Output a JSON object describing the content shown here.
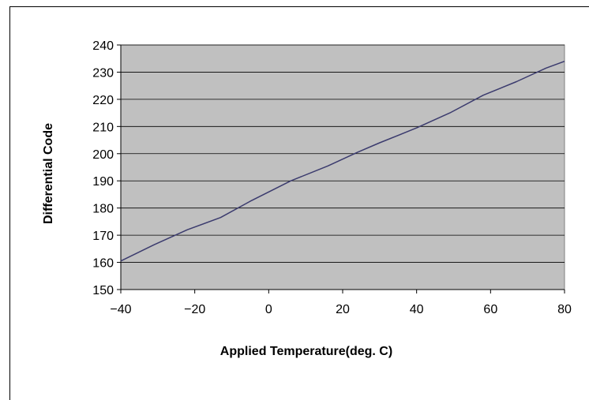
{
  "chart_data": {
    "type": "line",
    "title": "",
    "xlabel": "Applied Temperature(deg. C)",
    "ylabel": "Differential Code",
    "xlim": [
      -40,
      80
    ],
    "ylim": [
      150,
      240
    ],
    "xticks": [
      -40,
      -20,
      0,
      20,
      40,
      60,
      80
    ],
    "yticks": [
      150,
      160,
      170,
      180,
      190,
      200,
      210,
      220,
      230,
      240
    ],
    "xtick_labels": [
      "−40",
      "−20",
      "0",
      "20",
      "40",
      "60",
      "80"
    ],
    "ytick_labels": [
      "150",
      "160",
      "170",
      "180",
      "190",
      "200",
      "210",
      "220",
      "230",
      "240"
    ],
    "grid": "horizontal",
    "legend": "none",
    "series": [
      {
        "color": "#3b3b6e",
        "x": [
          -40,
          -31,
          -22,
          -13,
          -5,
          6,
          16,
          24,
          30,
          40,
          49,
          58,
          67,
          75,
          80
        ],
        "y": [
          160.5,
          166.5,
          172,
          176.5,
          182.5,
          190,
          195.5,
          200.5,
          204,
          209.5,
          215,
          221.5,
          226.5,
          231.5,
          234
        ]
      }
    ],
    "plot_background": "#c0c0c0",
    "gridline_color": "#000000"
  }
}
